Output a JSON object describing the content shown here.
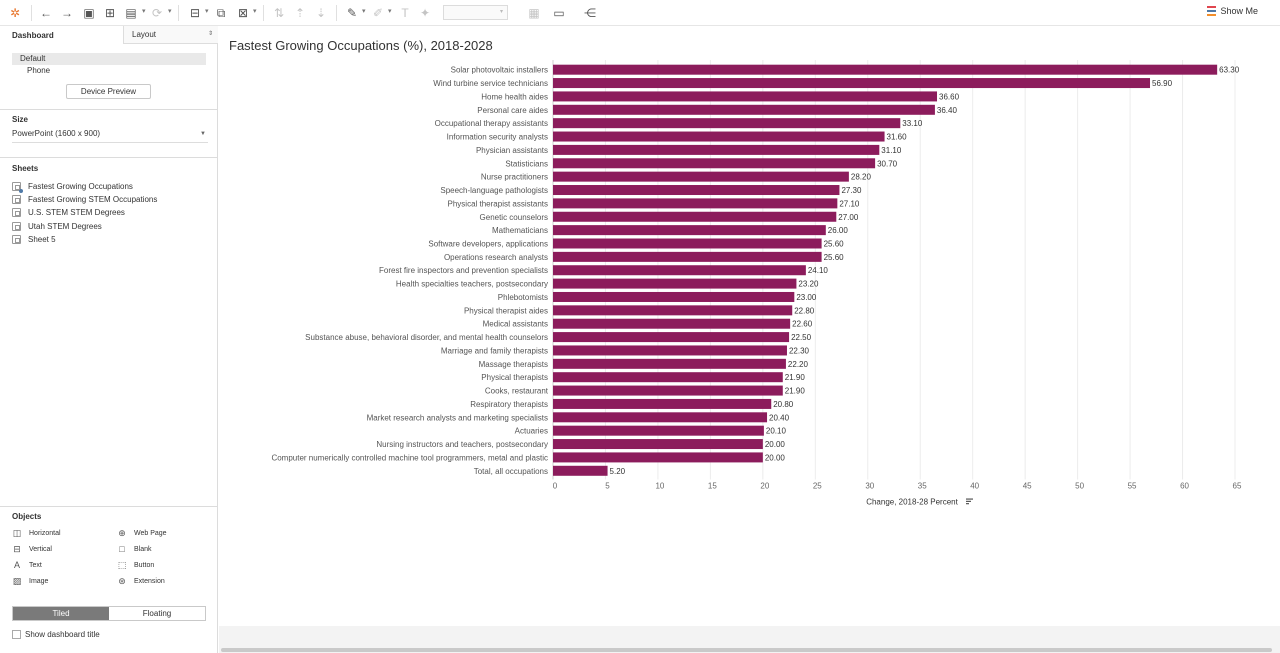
{
  "toolbar": {
    "show_me": "Show Me",
    "icons": [
      "tableau-logo-icon",
      "undo-icon",
      "redo-icon",
      "save-icon",
      "new-data-source-icon",
      "pause-updates-icon",
      "refresh-icon",
      "new-worksheet-icon",
      "duplicate-icon",
      "clear-icon",
      "swap-icon",
      "sort-ascending-icon",
      "sort-descending-icon",
      "highlight-icon",
      "group-icon",
      "label-icon",
      "pin-icon",
      "fit-icon",
      "presentation-icon",
      "share-icon"
    ]
  },
  "left_panel": {
    "dashboard_tab": "Dashboard",
    "layout_tab": "Layout",
    "devices": [
      "Default",
      "Phone"
    ],
    "device_preview": "Device Preview",
    "size_header": "Size",
    "size_value": "PowerPoint (1600 x 900)",
    "sheets_header": "Sheets",
    "sheets": [
      "Fastest Growing Occupations",
      "Fastest Growing STEM Occupations",
      "U.S. STEM STEM Degrees",
      "Utah STEM Degrees",
      "Sheet 5"
    ],
    "objects_header": "Objects",
    "objects": [
      {
        "label": "Horizontal",
        "icon": "horizontal-container-icon"
      },
      {
        "label": "Web Page",
        "icon": "globe-icon"
      },
      {
        "label": "Vertical",
        "icon": "vertical-container-icon"
      },
      {
        "label": "Blank",
        "icon": "blank-icon"
      },
      {
        "label": "Text",
        "icon": "text-icon"
      },
      {
        "label": "Button",
        "icon": "button-icon"
      },
      {
        "label": "Image",
        "icon": "image-icon"
      },
      {
        "label": "Extension",
        "icon": "extension-icon"
      }
    ],
    "tiled": "Tiled",
    "floating": "Floating",
    "show_title": "Show dashboard title"
  },
  "colors": {
    "bar": "#8c1c5c",
    "grid": "#ececec"
  },
  "chart_data": {
    "type": "bar",
    "orientation": "horizontal",
    "title": "Fastest Growing Occupations (%), 2018-2028",
    "xlabel": "Change, 2018-28 Percent",
    "xlim": [
      0,
      65
    ],
    "xticks": [
      0,
      5,
      10,
      15,
      20,
      25,
      30,
      35,
      40,
      45,
      50,
      55,
      60,
      65
    ],
    "grid": true,
    "categories": [
      "Solar photovoltaic installers",
      "Wind turbine service technicians",
      "Home health aides",
      "Personal care aides",
      "Occupational therapy assistants",
      "Information security analysts",
      "Physician assistants",
      "Statisticians",
      "Nurse practitioners",
      "Speech-language pathologists",
      "Physical therapist assistants",
      "Genetic counselors",
      "Mathematicians",
      "Software developers, applications",
      "Operations research analysts",
      "Forest fire inspectors and prevention specialists",
      "Health specialties teachers, postsecondary",
      "Phlebotomists",
      "Physical therapist aides",
      "Medical assistants",
      "Substance abuse, behavioral disorder, and mental health counselors",
      "Marriage and family therapists",
      "Massage therapists",
      "Physical therapists",
      "Cooks, restaurant",
      "Respiratory therapists",
      "Market research analysts and marketing specialists",
      "Actuaries",
      "Nursing instructors and teachers, postsecondary",
      "Computer numerically controlled machine tool programmers, metal and plastic",
      "Total, all occupations"
    ],
    "values": [
      63.3,
      56.9,
      36.6,
      36.4,
      33.1,
      31.6,
      31.1,
      30.7,
      28.2,
      27.3,
      27.1,
      27.0,
      26.0,
      25.6,
      25.6,
      24.1,
      23.2,
      23.0,
      22.8,
      22.6,
      22.5,
      22.3,
      22.2,
      21.9,
      21.9,
      20.8,
      20.4,
      20.1,
      20.0,
      20.0,
      5.2
    ],
    "value_labels": [
      "63.30",
      "56.90",
      "36.60",
      "36.40",
      "33.10",
      "31.60",
      "31.10",
      "30.70",
      "28.20",
      "27.30",
      "27.10",
      "27.00",
      "26.00",
      "25.60",
      "25.60",
      "24.10",
      "23.20",
      "23.00",
      "22.80",
      "22.60",
      "22.50",
      "22.30",
      "22.20",
      "21.90",
      "21.90",
      "20.80",
      "20.40",
      "20.10",
      "20.00",
      "20.00",
      "5.20"
    ]
  }
}
